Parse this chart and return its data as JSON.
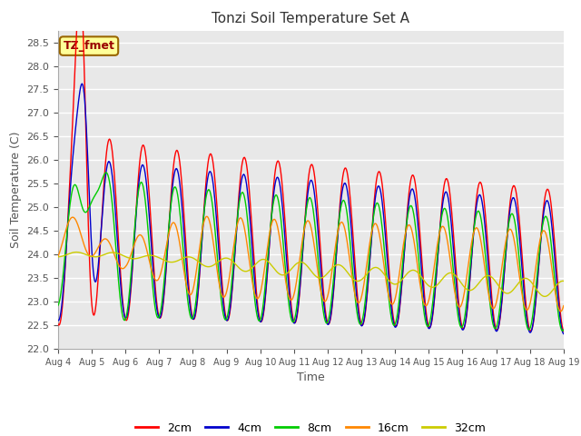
{
  "title": "Tonzi Soil Temperature Set A",
  "xlabel": "Time",
  "ylabel": "Soil Temperature (C)",
  "ylim": [
    22.0,
    28.75
  ],
  "yticks": [
    22.0,
    22.5,
    23.0,
    23.5,
    24.0,
    24.5,
    25.0,
    25.5,
    26.0,
    26.5,
    27.0,
    27.5,
    28.0,
    28.5
  ],
  "colors": {
    "2cm": "#ff0000",
    "4cm": "#0000cc",
    "8cm": "#00cc00",
    "16cm": "#ff8800",
    "32cm": "#cccc00"
  },
  "legend_labels": [
    "2cm",
    "4cm",
    "8cm",
    "16cm",
    "32cm"
  ],
  "annotation_text": "TZ_fmet",
  "annotation_bg": "#ffff99",
  "annotation_border": "#996600",
  "fig_bg": "#ffffff",
  "plot_bg": "#e8e8e8",
  "grid_color": "#ffffff",
  "n_days": 15,
  "start_day": 4,
  "points_per_day": 48,
  "title_fontsize": 11,
  "label_fontsize": 9,
  "tick_fontsize": 8
}
